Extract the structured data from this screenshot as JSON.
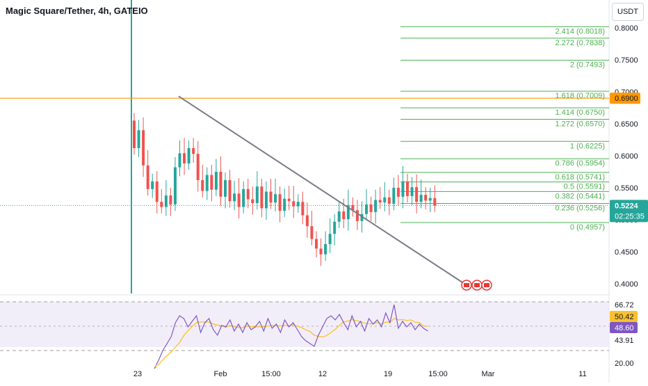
{
  "header": {
    "title": "Magic Square/Tether, 4h, GATEIO",
    "currency_label": "USDT"
  },
  "colors": {
    "up": "#26a69a",
    "down": "#ef5350",
    "fib": "#4caf50",
    "resistance": "#ff9800",
    "trendline": "#787b86",
    "rsi_line": "#7e57c2",
    "rsi_ma": "#fbc02d",
    "rsi_band": "#ede7f6",
    "price_badge": "#26a69a"
  },
  "price_axis": {
    "ticks": [
      "0.8000",
      "0.7500",
      "0.7000",
      "0.6500",
      "0.6000",
      "0.5500",
      "0.5000",
      "0.4500",
      "0.4000"
    ],
    "current_price": "0.5224",
    "countdown": "02:25:35",
    "resistance_level": "0.6900"
  },
  "rsi_axis": {
    "ticks": [
      "66.72",
      "43.91",
      "20.00"
    ],
    "rsi_value": "48.60",
    "rsi_ma_value": "50.42"
  },
  "time_axis": {
    "ticks": [
      "23",
      "Feb",
      "15:00",
      "12",
      "19",
      "15:00",
      "Mar",
      "11"
    ]
  },
  "fib_labels": [
    "2.414 (0.8018)",
    "2.272 (0.7838)",
    "2 (0.7493)",
    "1.618 (0.7009)",
    "1.414 (0.6750)",
    "1.272 (0.6570)",
    "1 (0.6225)",
    "0.786 (0.5954)",
    "0.618 (0.5741)",
    "0.5 (0.5591)",
    "0.382 (0.5441)",
    "0.236 (0.5256)",
    "0 (0.4957)"
  ],
  "chart_data": {
    "type": "candlestick",
    "title": "Magic Square/Tether, 4h, GATEIO",
    "y_range": [
      0.39,
      0.81
    ],
    "close_series": [
      0.612,
      0.64,
      0.585,
      0.548,
      0.56,
      0.528,
      0.52,
      0.538,
      0.524,
      0.582,
      0.604,
      0.588,
      0.612,
      0.603,
      0.562,
      0.545,
      0.57,
      0.547,
      0.575,
      0.536,
      0.562,
      0.529,
      0.541,
      0.52,
      0.548,
      0.532,
      0.526,
      0.552,
      0.518,
      0.544,
      0.527,
      0.54,
      0.514,
      0.533,
      0.529,
      0.521,
      0.528,
      0.507,
      0.49,
      0.47,
      0.455,
      0.446,
      0.462,
      0.478,
      0.497,
      0.513,
      0.501,
      0.523,
      0.515,
      0.498,
      0.509,
      0.524,
      0.512,
      0.531,
      0.527,
      0.535,
      0.525,
      0.55,
      0.536,
      0.56,
      0.537,
      0.551,
      0.528,
      0.539,
      0.53,
      0.534,
      0.522
    ],
    "fibonacci": {
      "levels": [
        2.414,
        2.272,
        2.0,
        1.618,
        1.414,
        1.272,
        1.0,
        0.786,
        0.618,
        0.5,
        0.382,
        0.236,
        0.0
      ],
      "prices": [
        0.8018,
        0.7838,
        0.7493,
        0.7009,
        0.675,
        0.657,
        0.6225,
        0.5954,
        0.5741,
        0.5591,
        0.5441,
        0.5256,
        0.4957
      ]
    },
    "resistance": 0.69,
    "current_price": 0.5224,
    "trendline": [
      [
        0.693,
        "Jan 27"
      ],
      [
        0.4,
        "Feb 27"
      ]
    ],
    "rsi": {
      "levels": [
        66.72,
        43.91
      ],
      "range": [
        20.0,
        70.0
      ],
      "current": 48.6,
      "ma": 50.42,
      "series": [
        22,
        28,
        35,
        40,
        45,
        55,
        60,
        58,
        52,
        56,
        60,
        48,
        55,
        58,
        50,
        46,
        53,
        52,
        57,
        49,
        54,
        48,
        55,
        50,
        52,
        56,
        49,
        58,
        51,
        54,
        48,
        57,
        52,
        55,
        50,
        45,
        42,
        40,
        38,
        46,
        52,
        58,
        60,
        57,
        61,
        55,
        50,
        60,
        52,
        56,
        49,
        58,
        54,
        57,
        52,
        62,
        55,
        68,
        51,
        56,
        52,
        55,
        50,
        54,
        51,
        49
      ]
    }
  }
}
